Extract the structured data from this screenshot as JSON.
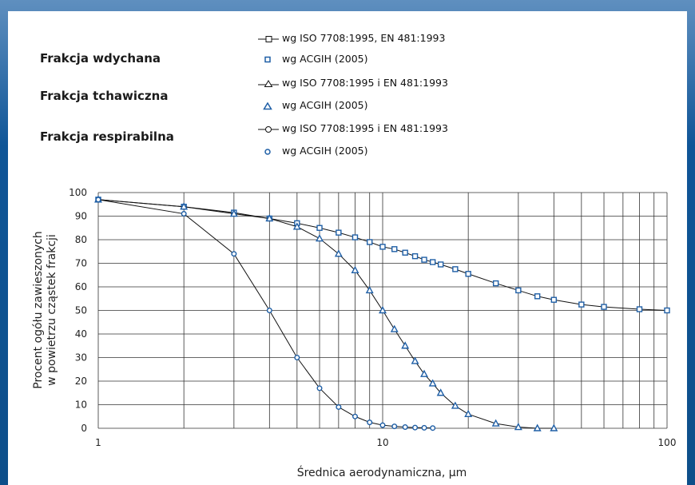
{
  "chart_data": {
    "type": "line",
    "xscale": "log",
    "xlim": [
      1,
      100
    ],
    "ylim": [
      0,
      100
    ],
    "xlabel": "Średnica aerodynamiczna, µm",
    "ylabel_line1": "Procent ogółu zawieszonych",
    "ylabel_line2": "w powietrzu cząstek frakcji",
    "xticks": [
      1,
      10,
      100
    ],
    "yticks": [
      0,
      10,
      20,
      30,
      40,
      50,
      60,
      70,
      80,
      90,
      100
    ],
    "grid": true,
    "legend": {
      "groups": [
        {
          "label": "Frakcja wdychana",
          "entries": [
            "wg ISO 7708:1995, EN 481:1993",
            "wg ACGIH (2005)"
          ]
        },
        {
          "label": "Frakcja tchawiczna",
          "entries": [
            "wg ISO 7708:1995 i EN 481:1993",
            "wg ACGIH (2005)"
          ]
        },
        {
          "label": "Frakcja respirabilna",
          "entries": [
            "wg ISO 7708:1995 i EN 481:1993",
            "wg ACGIH (2005)"
          ]
        }
      ]
    },
    "series": [
      {
        "fraction": "inhalable",
        "marker": "square",
        "color": "#1f5fa6",
        "x": [
          1,
          2,
          3,
          4,
          5,
          6,
          7,
          8,
          9,
          10,
          11,
          12,
          13,
          14,
          15,
          16,
          18,
          20,
          25,
          30,
          35,
          40,
          50,
          60,
          80,
          100
        ],
        "y": [
          97,
          94,
          91.5,
          89,
          87,
          85,
          83,
          81,
          79,
          77,
          76,
          74.5,
          73,
          71.5,
          70.5,
          69.5,
          67.5,
          65.5,
          61.5,
          58.5,
          56,
          54.5,
          52.5,
          51.5,
          50.5,
          50
        ]
      },
      {
        "fraction": "thoracic",
        "marker": "triangle",
        "color": "#1f5fa6",
        "x": [
          1,
          2,
          3,
          4,
          5,
          6,
          7,
          8,
          9,
          10,
          11,
          12,
          13,
          14,
          15,
          16,
          18,
          20,
          25,
          30,
          35,
          40
        ],
        "y": [
          97,
          94,
          91,
          89,
          85.5,
          80.5,
          74,
          67,
          58.5,
          50,
          42,
          35,
          28.5,
          23,
          19,
          15,
          9.5,
          6,
          2,
          0.5,
          0,
          0
        ]
      },
      {
        "fraction": "respirable",
        "marker": "circle",
        "color": "#1f5fa6",
        "x": [
          1,
          2,
          3,
          4,
          5,
          6,
          7,
          8,
          9,
          10,
          11,
          12,
          13,
          14,
          15
        ],
        "y": [
          97,
          91,
          74,
          50,
          30,
          17,
          9,
          5,
          2.5,
          1.3,
          0.8,
          0.5,
          0.3,
          0.2,
          0.1
        ]
      }
    ]
  }
}
